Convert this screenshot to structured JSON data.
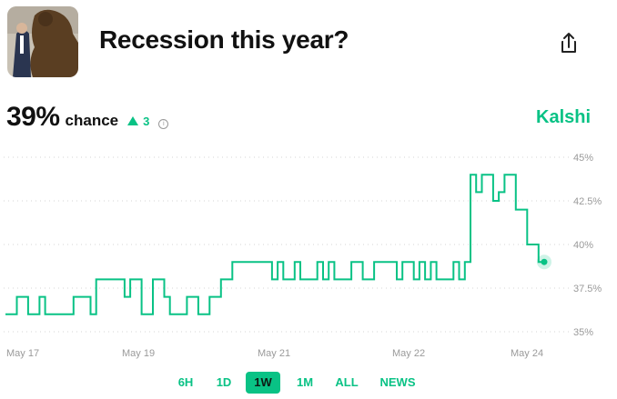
{
  "header": {
    "title": "Recession this year?"
  },
  "probability": {
    "value": "39%",
    "label": "chance",
    "change": "3"
  },
  "brand": "Kalshi",
  "colors": {
    "accent": "#09c285"
  },
  "chart_data": {
    "type": "line",
    "title": "",
    "ylim": [
      35,
      45
    ],
    "y_ticks": [
      "45%",
      "42.5%",
      "40%",
      "37.5%",
      "35%"
    ],
    "x_ticks": [
      "May 17",
      "May 19",
      "May 21",
      "May 22",
      "May 24"
    ],
    "grid": true,
    "series": [
      {
        "values": [
          36,
          36,
          37,
          37,
          36,
          36,
          37,
          36,
          36,
          36,
          36,
          36,
          37,
          37,
          37,
          36,
          38,
          38,
          38,
          38,
          38,
          37,
          38,
          38,
          36,
          36,
          38,
          38,
          37,
          36,
          36,
          36,
          37,
          37,
          36,
          36,
          37,
          37,
          38,
          38,
          39,
          39,
          39,
          39,
          39,
          39,
          39,
          38,
          39,
          38,
          38,
          39,
          38,
          38,
          38,
          39,
          38,
          39,
          38,
          38,
          38,
          39,
          39,
          38,
          38,
          39,
          39,
          39,
          39,
          38,
          39,
          39,
          38,
          39,
          38,
          39,
          38,
          38,
          38,
          39,
          38,
          39,
          44,
          43,
          44,
          44,
          42.5,
          43,
          44,
          44,
          42,
          42,
          40,
          40,
          39,
          39
        ]
      }
    ],
    "end_marker_value": 39
  },
  "tabs": [
    "6H",
    "1D",
    "1W",
    "1M",
    "ALL",
    "NEWS"
  ],
  "active_tab": "1W"
}
